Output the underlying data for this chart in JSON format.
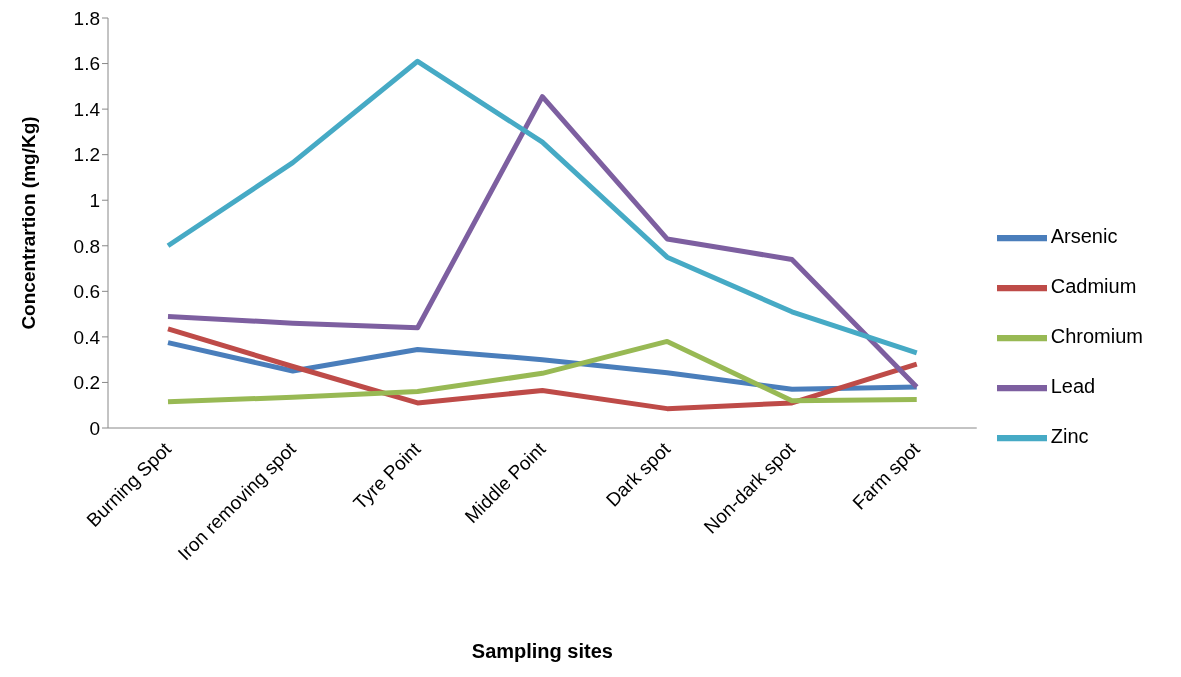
{
  "chart_data": {
    "type": "line",
    "xlabel": "Sampling sites",
    "ylabel": "Concentrartion (mg/Kg)",
    "categories": [
      "Burning Spot",
      "Iron removing spot",
      "Tyre Point",
      "Middle Point",
      "Dark spot",
      "Non-dark spot",
      "Farm spot"
    ],
    "ylim": [
      0,
      1.8
    ],
    "yticks": [
      0,
      0.2,
      0.4,
      0.6,
      0.8,
      1,
      1.2,
      1.4,
      1.6,
      1.8
    ],
    "grid": false,
    "legend": "right",
    "marker": "none",
    "line_style": "solid",
    "series": [
      {
        "name": "Arsenic",
        "color": "#4a7ebb",
        "values": [
          0.375,
          0.25,
          0.345,
          0.3,
          0.243,
          0.17,
          0.18
        ]
      },
      {
        "name": "Cadmium",
        "color": "#be4b48",
        "values": [
          0.435,
          0.27,
          0.11,
          0.165,
          0.085,
          0.11,
          0.28
        ]
      },
      {
        "name": "Chromium",
        "color": "#98b954",
        "values": [
          0.115,
          0.135,
          0.16,
          0.24,
          0.38,
          0.12,
          0.125
        ]
      },
      {
        "name": "Lead",
        "color": "#7d5fa0",
        "values": [
          0.49,
          0.46,
          0.44,
          1.455,
          0.83,
          0.74,
          0.18
        ]
      },
      {
        "name": "Zinc",
        "color": "#46aac5",
        "values": [
          0.8,
          1.165,
          1.61,
          1.255,
          0.75,
          0.51,
          0.33
        ]
      }
    ]
  }
}
